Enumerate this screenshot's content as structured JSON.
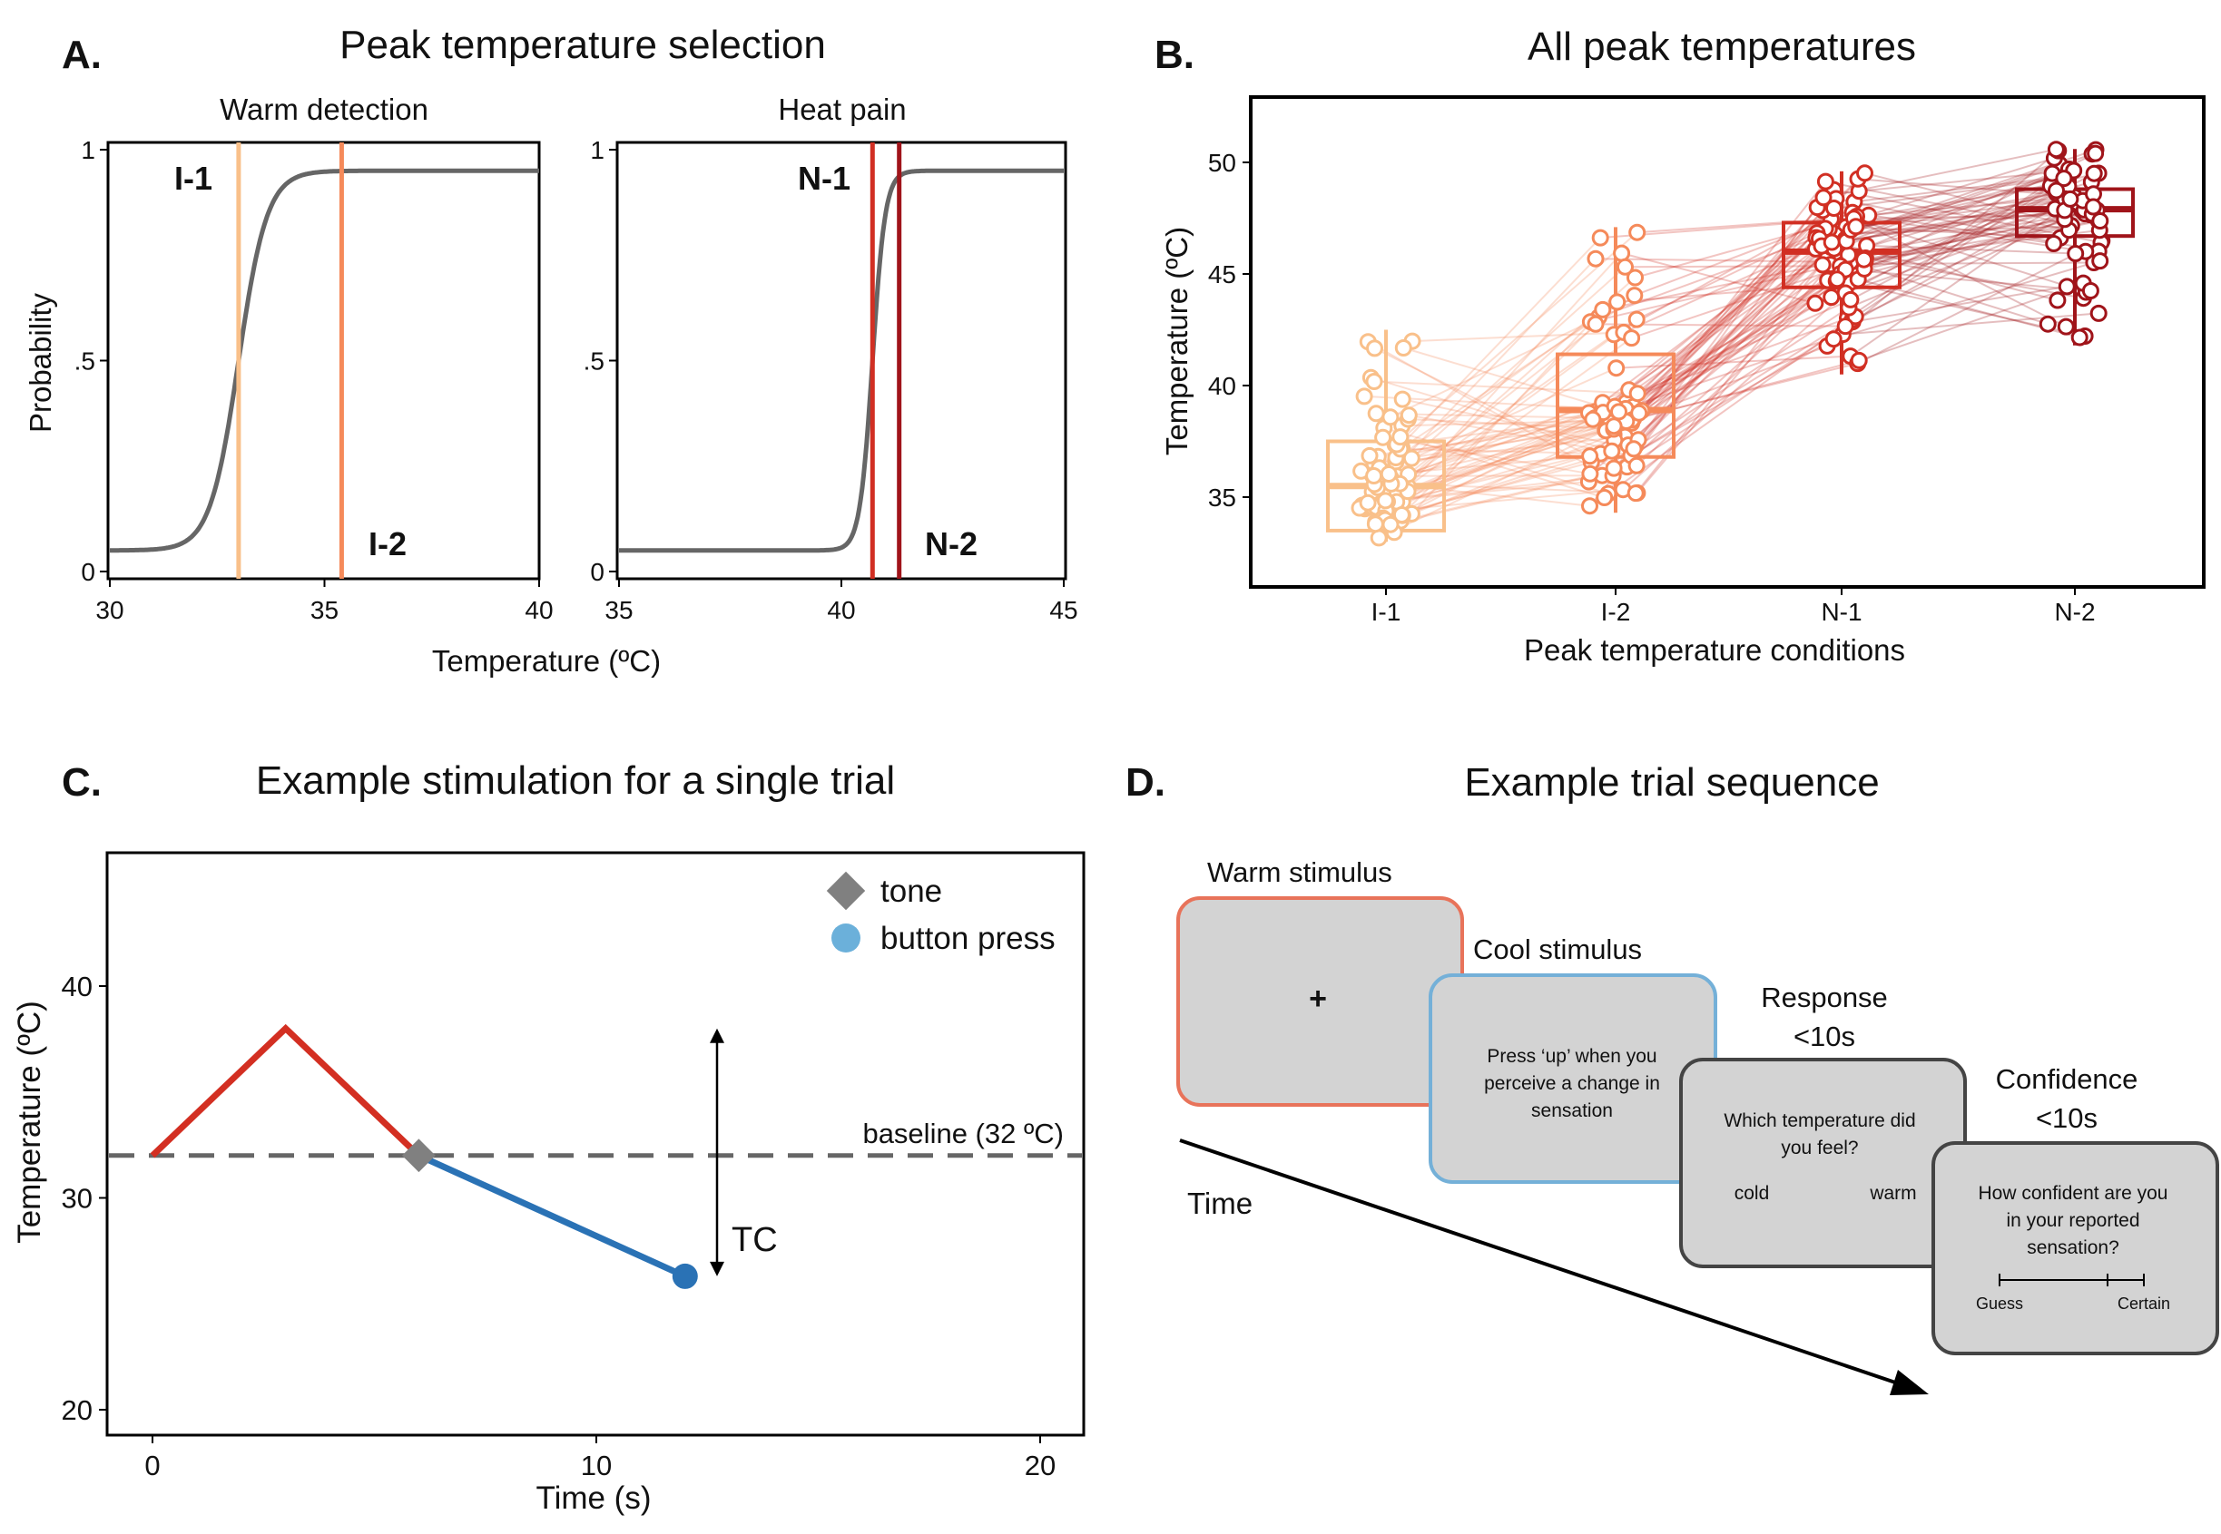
{
  "panel_labels": {
    "a": "A.",
    "b": "B.",
    "c": "C.",
    "d": "D."
  },
  "colors": {
    "i1": "#f9c08a",
    "i2": "#f58a5a",
    "n1": "#d12f23",
    "n2": "#a0141a",
    "curve": "#666666",
    "warm": "#d32f22",
    "cool": "#2a72b5",
    "tone": "#808080",
    "press": "#6bb0da",
    "box_fill": "#d3d3d3",
    "frame_warm": "#e8735a",
    "frame_cool": "#74b0d8",
    "frame_dark": "#444444"
  },
  "panelA": {
    "title": "Peak temperature selection",
    "ylabel": "Probability",
    "xlabel": "Temperature (ºC)",
    "yticks": [
      "0",
      ".5",
      "1"
    ],
    "left": {
      "subtitle": "Warm detection",
      "xticks": [
        "30",
        "35",
        "40"
      ],
      "label1": "I-1",
      "label2": "I-2"
    },
    "right": {
      "subtitle": "Heat pain",
      "xticks": [
        "35",
        "40",
        "45"
      ],
      "label1": "N-1",
      "label2": "N-2"
    }
  },
  "panelB": {
    "title": "All peak temperatures",
    "ylabel": "Temperature (ºC)",
    "xlabel": "Peak temperature conditions",
    "yticks": [
      "35",
      "40",
      "45",
      "50"
    ]
  },
  "panelC": {
    "title": "Example stimulation for a single trial",
    "ylabel": "Temperature (ºC)",
    "xlabel": "Time (s)",
    "yticks": [
      "20",
      "30",
      "40"
    ],
    "xticks": [
      "0",
      "10",
      "20"
    ],
    "legend": {
      "tone": "tone",
      "press": "button press"
    },
    "baseline_label": "baseline (32 ºC)",
    "tc_label": "TC"
  },
  "panelD": {
    "title": "Example trial sequence",
    "time_label": "Time",
    "s1": {
      "heading": "Warm stimulus",
      "body": "+"
    },
    "s2": {
      "heading": "Cool stimulus",
      "line1": "Press ‘up’ when you",
      "line2": "perceive a change in",
      "line3": "sensation"
    },
    "s3": {
      "heading1": "Response",
      "heading2": "<10s",
      "line1": "Which temperature did",
      "line2": "you feel?",
      "opt1": "cold",
      "opt2": "warm"
    },
    "s4": {
      "heading1": "Confidence",
      "heading2": "<10s",
      "line1": "How confident are you",
      "line2": "in your reported",
      "line3": "sensation?",
      "scale_left": "Guess",
      "scale_right": "Certain"
    }
  },
  "chart_data": [
    {
      "type": "line",
      "title": "Warm detection",
      "xlabel": "Temperature (ºC)",
      "ylabel": "Probability",
      "xlim": [
        30,
        40
      ],
      "ylim": [
        0,
        1
      ],
      "curve": {
        "midpoint": 33.0,
        "lower": 0.05,
        "upper": 0.95,
        "slope": 3.0
      },
      "markers": [
        {
          "name": "I-1",
          "x": 33.0
        },
        {
          "name": "I-2",
          "x": 35.4
        }
      ]
    },
    {
      "type": "line",
      "title": "Heat pain",
      "xlabel": "Temperature (ºC)",
      "ylabel": "Probability",
      "xlim": [
        35,
        45
      ],
      "ylim": [
        0,
        1
      ],
      "curve": {
        "midpoint": 40.7,
        "lower": 0.05,
        "upper": 0.95,
        "slope": 7.0
      },
      "markers": [
        {
          "name": "N-1",
          "x": 40.7
        },
        {
          "name": "N-2",
          "x": 41.3
        }
      ]
    },
    {
      "type": "box",
      "title": "All peak temperatures",
      "xlabel": "Peak temperature conditions",
      "ylabel": "Temperature (ºC)",
      "ylim": [
        32.5,
        51.5
      ],
      "categories": [
        "I-1",
        "I-2",
        "N-1",
        "N-2"
      ],
      "boxes": [
        {
          "q1": 33.5,
          "median": 35.5,
          "q3": 37.5,
          "whisker_low": 33.0,
          "whisker_high": 42.5
        },
        {
          "q1": 36.8,
          "median": 38.9,
          "q3": 41.4,
          "whisker_low": 34.3,
          "whisker_high": 47.1
        },
        {
          "q1": 44.4,
          "median": 46.0,
          "q3": 47.3,
          "whisker_low": 40.5,
          "whisker_high": 49.6
        },
        {
          "q1": 46.7,
          "median": 47.9,
          "q3": 48.8,
          "whisker_low": 41.8,
          "whisker_high": 50.6
        }
      ],
      "participants": 70
    },
    {
      "type": "line",
      "title": "Example stimulation for a single trial",
      "xlabel": "Time (s)",
      "ylabel": "Temperature (ºC)",
      "xlim": [
        -1,
        21
      ],
      "ylim": [
        19,
        46
      ],
      "series": [
        {
          "name": "warm",
          "x": [
            0,
            3,
            6
          ],
          "y": [
            32,
            38,
            32
          ]
        },
        {
          "name": "cool",
          "x": [
            6,
            12
          ],
          "y": [
            32,
            26.3
          ]
        }
      ],
      "baseline": 32,
      "tone": {
        "x": 6,
        "y": 32
      },
      "button_press": {
        "x": 12,
        "y": 26.3
      },
      "tc_range": [
        26.3,
        38
      ]
    }
  ]
}
